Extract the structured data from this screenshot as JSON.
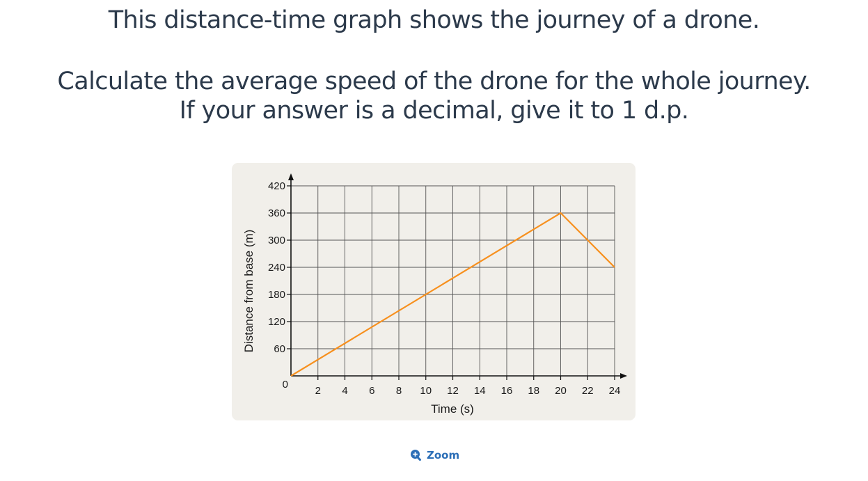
{
  "question": {
    "line1": "This distance-time graph shows the journey of a drone.",
    "line2": "Calculate the average speed of the drone for the whole journey.",
    "line3": "If your answer is a decimal, give it to 1 d.p."
  },
  "zoom": {
    "label": "Zoom",
    "icon": "zoom-in-icon",
    "color": "#2c6fb7"
  },
  "colors": {
    "line": "#f7901e",
    "card_background": "#f1efea",
    "grid": "#555555",
    "text": "#2c3a4b"
  },
  "chart_data": {
    "type": "line",
    "title": "",
    "xlabel": "Time (s)",
    "ylabel": "Distance from base (m)",
    "xlim": [
      0,
      24
    ],
    "ylim": [
      0,
      420
    ],
    "x_ticks": [
      "2",
      "4",
      "6",
      "8",
      "10",
      "12",
      "14",
      "16",
      "18",
      "20",
      "22",
      "24"
    ],
    "y_ticks": [
      "60",
      "120",
      "180",
      "240",
      "300",
      "360",
      "420"
    ],
    "origin_label": "0",
    "grid": true,
    "series": [
      {
        "x": [
          0,
          20,
          24
        ],
        "y": [
          0,
          360,
          240
        ]
      }
    ]
  }
}
